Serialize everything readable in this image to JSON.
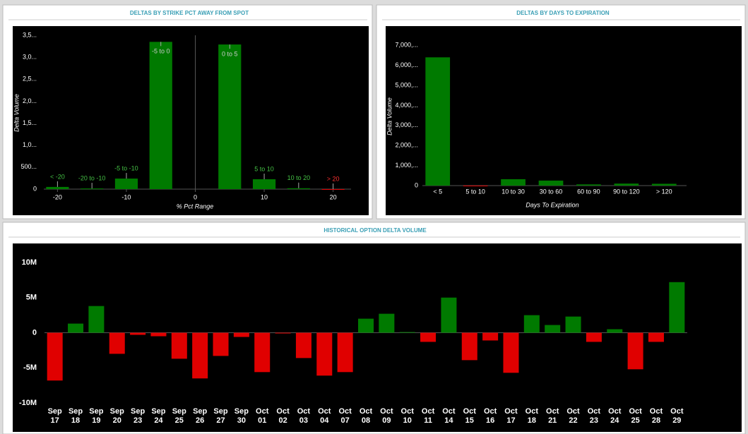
{
  "chart_data": [
    {
      "type": "bar",
      "title": "DELTAS BY STRIKE PCT AWAY FROM SPOT",
      "x_label": "% Pct Range",
      "y_label": "Delta Volume",
      "categories": [
        "< -20",
        "-20 to -10",
        "-5 to -10",
        "-5 to 0",
        "0 to 5",
        "5 to 10",
        "10 to 20",
        "> 20"
      ],
      "x": [
        -20,
        -15,
        -10,
        -5,
        5,
        10,
        15,
        20
      ],
      "values": [
        50,
        15,
        240,
        3350,
        3290,
        225,
        20,
        -10
      ],
      "color": "#007a00",
      "negative_color": "#e00000",
      "xlim": [
        -22.5,
        22.5
      ],
      "xticks": [
        -20,
        -10,
        0,
        10,
        20
      ],
      "ylim": [
        0,
        3660
      ],
      "yticks": [
        0,
        {
          "value": 500,
          "label": "500..."
        },
        {
          "value": 1000,
          "label": "1,0..."
        },
        {
          "value": 1500,
          "label": "1,5..."
        },
        {
          "value": 2000,
          "label": "2,0..."
        },
        {
          "value": 2500,
          "label": "2,5..."
        },
        {
          "value": 3000,
          "label": "3,0..."
        },
        {
          "value": 3500,
          "label": "3,5..."
        }
      ],
      "grid": false
    },
    {
      "type": "bar",
      "title": "DELTAS BY DAYS TO EXPIRATION",
      "x_label": "Days To Expiration",
      "y_label": "Delta Volume",
      "categories": [
        "< 5",
        "5 to 10",
        "10 to 30",
        "30 to 60",
        "60 to 90",
        "90 to 120",
        "> 120"
      ],
      "values": [
        6400,
        -20,
        320,
        250,
        60,
        100,
        90
      ],
      "color": "#007a00",
      "negative_color": "#e00000",
      "ylim": [
        0,
        7500
      ],
      "yticks": [
        0,
        {
          "value": 1000,
          "label": "1,000,..."
        },
        {
          "value": 2000,
          "label": "2,000,..."
        },
        {
          "value": 3000,
          "label": "3,000,..."
        },
        {
          "value": 4000,
          "label": "4,000,..."
        },
        {
          "value": 5000,
          "label": "5,000,..."
        },
        {
          "value": 6000,
          "label": "6,000,..."
        },
        {
          "value": 7000,
          "label": "7,000,..."
        }
      ],
      "grid": false
    },
    {
      "type": "bar",
      "title": "HISTORICAL OPTION DELTA VOLUME",
      "categories": [
        "Sep 17",
        "Sep 18",
        "Sep 19",
        "Sep 20",
        "Sep 23",
        "Sep 24",
        "Sep 25",
        "Sep 26",
        "Sep 27",
        "Sep 30",
        "Oct 01",
        "Oct 02",
        "Oct 03",
        "Oct 04",
        "Oct 07",
        "Oct 08",
        "Oct 09",
        "Oct 10",
        "Oct 11",
        "Oct 14",
        "Oct 15",
        "Oct 16",
        "Oct 17",
        "Oct 18",
        "Oct 21",
        "Oct 22",
        "Oct 23",
        "Oct 24",
        "Oct 25",
        "Oct 28",
        "Oct 29"
      ],
      "values": [
        -6800000,
        1300000,
        3800000,
        -3000000,
        -300000,
        -500000,
        -3700000,
        -6500000,
        -3300000,
        -600000,
        -5600000,
        -100000,
        -3600000,
        -6100000,
        -5600000,
        2000000,
        2700000,
        100000,
        -1300000,
        5000000,
        -3900000,
        -1100000,
        -5700000,
        2500000,
        1100000,
        2300000,
        -1300000,
        500000,
        -5200000,
        -1300000,
        7200000
      ],
      "color": "#007a00",
      "negative_color": "#e00000",
      "ylim": [
        -13000000,
        12700000
      ],
      "yticks": [
        {
          "value": -10000000,
          "label": "-10M"
        },
        {
          "value": -5000000,
          "label": "-5M"
        },
        0,
        {
          "value": 5000000,
          "label": "5M"
        },
        {
          "value": 10000000,
          "label": "10M"
        }
      ],
      "grid": false
    }
  ]
}
